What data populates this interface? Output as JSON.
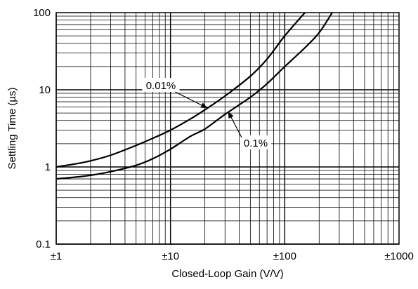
{
  "chart_data": {
    "type": "line",
    "title": "",
    "xlabel": "Closed-Loop Gain (V/V)",
    "ylabel": "Settling Time (µs)",
    "x_scale": "log",
    "y_scale": "log",
    "xlim": [
      1,
      1000
    ],
    "ylim": [
      0.1,
      100
    ],
    "grid": true,
    "legend": "none",
    "x_ticks": [
      {
        "value": 1,
        "label": "±1"
      },
      {
        "value": 10,
        "label": "±10"
      },
      {
        "value": 100,
        "label": "±100"
      },
      {
        "value": 1000,
        "label": "±1000"
      }
    ],
    "y_ticks": [
      {
        "value": 0.1,
        "label": "0.1"
      },
      {
        "value": 1,
        "label": "1"
      },
      {
        "value": 10,
        "label": "10"
      },
      {
        "value": 100,
        "label": "100"
      }
    ],
    "series": [
      {
        "name": "0.01%",
        "color": "#000000",
        "x": [
          1,
          1.5,
          2,
          3,
          5,
          7,
          10,
          15,
          20,
          30,
          50,
          70,
          100,
          150
        ],
        "y": [
          1.0,
          1.1,
          1.2,
          1.42,
          1.9,
          2.35,
          3.0,
          4.2,
          5.5,
          8.3,
          15,
          25,
          50,
          100
        ]
      },
      {
        "name": "0.1%",
        "color": "#000000",
        "x": [
          1,
          1.5,
          2,
          3,
          5,
          7,
          10,
          15,
          20,
          30,
          50,
          70,
          100,
          150,
          200,
          260
        ],
        "y": [
          0.7,
          0.74,
          0.78,
          0.87,
          1.05,
          1.28,
          1.7,
          2.5,
          3.1,
          4.8,
          8.0,
          12,
          20,
          35,
          55,
          100
        ]
      }
    ],
    "annotations": [
      {
        "text": "0.01%",
        "series": "0.01%",
        "arrow_to_x": 21,
        "arrow_to_y": 5.8
      },
      {
        "text": "0.1%",
        "series": "0.1%",
        "arrow_to_x": 32,
        "arrow_to_y": 5.2
      }
    ]
  }
}
